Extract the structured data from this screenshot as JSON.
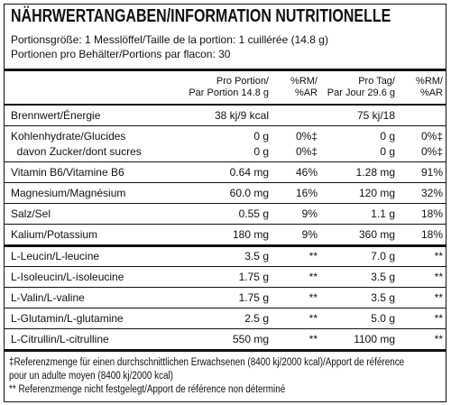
{
  "header": {
    "title": "NÄHRWERTANGABEN/INFORMATION NUTRITIONELLE",
    "serving_size": "Portionsgröße: 1 Messlöffel/Taille de la portion: 1 cuillérée (14.8 g)",
    "servings": "Portionen pro Behälter/Portions par flacon: 30"
  },
  "table": {
    "columns": [
      "Pro Portion/\nPar Portion 14.8 g",
      "%RM/\n%AR",
      "Pro Tag/\nPar Jour 29.6 g",
      "%RM/\n%AR"
    ],
    "groups": [
      [
        [
          "Brennwert/Énergie",
          "38 kj/9 kcal",
          null,
          "75 kj/18",
          null
        ]
      ],
      [
        [
          "Kohlenhydrate/Glucides",
          "0 g",
          "0%‡",
          "0 g",
          "0%‡"
        ],
        [
          "  davon Zucker/dont sucres",
          "0 g",
          "0%‡",
          "0 g",
          "0%‡"
        ]
      ],
      [
        [
          "Vitamin B6/Vitamine B6",
          "0.64 mg",
          "46%",
          "1.28 mg",
          "91%"
        ]
      ],
      [
        [
          "Magnesium/Magnésium",
          "60.0 mg",
          "16%",
          "120 mg",
          "32%"
        ]
      ],
      [
        [
          "Salz/Sel",
          "0.55 g",
          "9%",
          "1.1 g",
          "18%"
        ]
      ],
      [
        [
          "Kalium/Potassium",
          "180 mg",
          "9%",
          "360 mg",
          "18%"
        ]
      ],
      [
        [
          "L-Leucin/L-leucine",
          "3.5 g",
          "**",
          "7.0 g",
          "**"
        ]
      ],
      [
        [
          "L-Isoleucin/L-isoleucine",
          "1.75 g",
          "**",
          "3.5 g",
          "**"
        ]
      ],
      [
        [
          "L-Valin/L-valine",
          "1.75 g",
          "**",
          "3.5 g",
          "**"
        ]
      ],
      [
        [
          "L-Glutamin/L-glutamine",
          "2.5 g",
          "**",
          "5.0 g",
          "**"
        ]
      ],
      [
        [
          "L-Citrullin/L-citrulline",
          "550 mg",
          "**",
          "1100 mg",
          "**"
        ]
      ]
    ]
  },
  "footnotes": [
    "‡Referenzmenge für einen durchschnittlichen Erwachsenen (8400 kj/2000 kcal)/Apport de référence",
    "pour un adulte moyen (8400 kj/2000 kcal)",
    "** Referenzmenge nicht festgelegt/Apport de référence non déterminé"
  ]
}
